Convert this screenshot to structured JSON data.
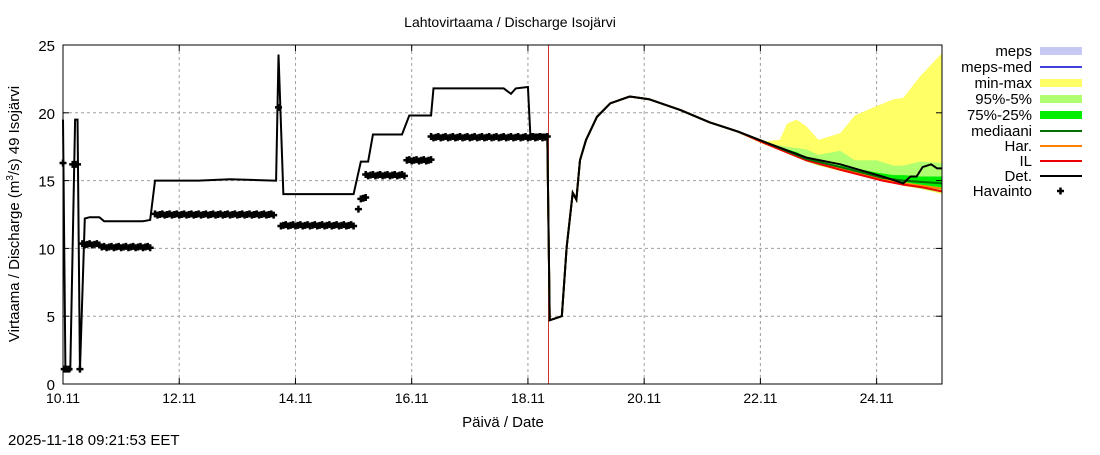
{
  "chart_data": {
    "type": "line",
    "title": "Lahtovirtaama / Discharge  Isojärvi",
    "xlabel": "Päivä / Date",
    "ylabel": "Virtaama / Discharge (m3/s)  49 Isojärvi",
    "ylabel_parts": {
      "pre": "Virtaama / Discharge (m",
      "sup": "3",
      "post": "/s)  49 Isojärvi"
    },
    "xlim": [
      "2025-11-10 00:00",
      "2025-11-25 03:00"
    ],
    "ylim": [
      0,
      25
    ],
    "grid": true,
    "legend_position": "right",
    "x_ticks": [
      {
        "label": "10.11",
        "t": "2025-11-10 00:00"
      },
      {
        "label": "12.11",
        "t": "2025-11-12 00:00"
      },
      {
        "label": "14.11",
        "t": "2025-11-14 00:00"
      },
      {
        "label": "16.11",
        "t": "2025-11-16 00:00"
      },
      {
        "label": "18.11",
        "t": "2025-11-18 00:00"
      },
      {
        "label": "20.11",
        "t": "2025-11-20 00:00"
      },
      {
        "label": "22.11",
        "t": "2025-11-22 00:00"
      },
      {
        "label": "24.11",
        "t": "2025-11-24 00:00"
      }
    ],
    "y_ticks": [
      "0",
      "5",
      "10",
      "15",
      "20",
      "25"
    ],
    "now_line": {
      "t": "2025-11-18 08:30",
      "color": "#c00000"
    },
    "legend": [
      {
        "label": "meps",
        "kind": "band",
        "color": "#c8c8f4"
      },
      {
        "label": "meps-med",
        "kind": "line",
        "color": "#4040e0"
      },
      {
        "label": "min-max",
        "kind": "band",
        "color": "#ffff66"
      },
      {
        "label": "95%-5%",
        "kind": "band",
        "color": "#b0ff70"
      },
      {
        "label": "75%-25%",
        "kind": "band",
        "color": "#00ee00"
      },
      {
        "label": "mediaani",
        "kind": "line",
        "color": "#007000"
      },
      {
        "label": "Har.",
        "kind": "line",
        "color": "#ff8000"
      },
      {
        "label": "IL",
        "kind": "line",
        "color": "#ee0000"
      },
      {
        "label": "Det.",
        "kind": "line",
        "color": "#000000"
      },
      {
        "label": "Havainto",
        "kind": "cross",
        "color": "#000000"
      }
    ],
    "bands": {
      "t": [
        "2025-11-21 15:00",
        "2025-11-22 02:30",
        "2025-11-22 08:00",
        "2025-11-22 11:00",
        "2025-11-22 15:00",
        "2025-11-22 19:00",
        "2025-11-23 00:00",
        "2025-11-23 09:00",
        "2025-11-23 15:00",
        "2025-11-24 00:00",
        "2025-11-24 07:00",
        "2025-11-24 11:00",
        "2025-11-24 18:00",
        "2025-11-25 03:00"
      ],
      "min_max": {
        "upper": [
          18.6,
          17.9,
          18.0,
          19.2,
          19.5,
          19.0,
          18.0,
          18.5,
          19.8,
          20.5,
          21.0,
          21.1,
          22.7,
          24.4
        ],
        "lower": [
          18.5,
          17.6,
          17.4,
          17.2,
          16.9,
          16.4,
          16.1,
          15.7,
          15.5,
          15.1,
          14.8,
          14.6,
          14.4,
          14.0
        ]
      },
      "p95_p5": {
        "upper": [
          18.6,
          17.8,
          17.6,
          17.5,
          17.4,
          17.3,
          16.9,
          17.2,
          16.5,
          16.5,
          16.1,
          16.1,
          16.4,
          16.3
        ],
        "lower": [
          18.5,
          17.7,
          17.4,
          17.2,
          16.9,
          16.4,
          16.1,
          15.8,
          15.5,
          15.1,
          14.8,
          14.7,
          14.4,
          14.1
        ]
      },
      "p75_p25": {
        "upper": [
          18.6,
          17.8,
          17.5,
          17.3,
          17.1,
          16.7,
          16.4,
          16.1,
          15.9,
          15.6,
          15.4,
          15.4,
          15.3,
          15.3
        ],
        "lower": [
          18.5,
          17.7,
          17.4,
          17.2,
          16.9,
          16.5,
          16.2,
          15.8,
          15.6,
          15.2,
          15.0,
          14.9,
          14.7,
          14.5
        ]
      }
    },
    "forecast": {
      "t": [
        "2025-11-18 01:00",
        "2025-11-18 08:00",
        "2025-11-18 09:00",
        "2025-11-18 14:00",
        "2025-11-18 16:00",
        "2025-11-18 18:30",
        "2025-11-18 20:00",
        "2025-11-18 21:30",
        "2025-11-19 00:00",
        "2025-11-19 04:30",
        "2025-11-19 10:00",
        "2025-11-19 18:00",
        "2025-11-20 02:00",
        "2025-11-20 15:00",
        "2025-11-21 03:00",
        "2025-11-21 15:00",
        "2025-11-22 02:30",
        "2025-11-22 19:00",
        "2025-11-23 09:00",
        "2025-11-24 02:30",
        "2025-11-24 11:00",
        "2025-11-24 19:00",
        "2025-11-25 03:00"
      ],
      "series": [
        {
          "name": "Har.",
          "color": "#ff8000",
          "values": [
            18.4,
            18.4,
            4.7,
            5.0,
            10.1,
            14.1,
            13.6,
            16.5,
            18.0,
            19.7,
            20.7,
            21.2,
            21.0,
            20.2,
            19.3,
            18.6,
            17.7,
            16.5,
            15.9,
            15.1,
            14.8,
            14.6,
            14.4
          ]
        },
        {
          "name": "IL",
          "color": "#ee0000",
          "values": [
            18.4,
            18.4,
            4.7,
            5.0,
            10.1,
            14.1,
            13.6,
            16.5,
            18.0,
            19.7,
            20.7,
            21.2,
            21.0,
            20.2,
            19.3,
            18.6,
            17.7,
            16.5,
            15.8,
            15.0,
            14.7,
            14.5,
            14.2
          ]
        },
        {
          "name": "mediaani",
          "color": "#007000",
          "values": [
            18.4,
            18.4,
            4.7,
            5.0,
            10.1,
            14.1,
            13.6,
            16.5,
            18.0,
            19.7,
            20.7,
            21.2,
            21.0,
            20.2,
            19.3,
            18.6,
            17.8,
            16.6,
            16.0,
            15.2,
            15.0,
            14.9,
            14.8
          ]
        }
      ]
    },
    "det": {
      "name": "Det.",
      "color": "#000000",
      "points": [
        [
          "2025-11-10 00:00",
          19.5
        ],
        [
          "2025-11-10 01:00",
          1.0
        ],
        [
          "2025-11-10 03:00",
          1.0
        ],
        [
          "2025-11-10 05:00",
          19.5
        ],
        [
          "2025-11-10 06:00",
          19.5
        ],
        [
          "2025-11-10 07:00",
          1.0
        ],
        [
          "2025-11-10 09:00",
          12.2
        ],
        [
          "2025-11-10 11:00",
          12.3
        ],
        [
          "2025-11-10 15:00",
          12.3
        ],
        [
          "2025-11-10 17:00",
          12.0
        ],
        [
          "2025-11-11 09:00",
          12.0
        ],
        [
          "2025-11-11 12:00",
          12.1
        ],
        [
          "2025-11-11 14:00",
          15.0
        ],
        [
          "2025-11-12 08:00",
          15.0
        ],
        [
          "2025-11-12 21:00",
          15.1
        ],
        [
          "2025-11-13 15:00",
          15.0
        ],
        [
          "2025-11-13 16:00",
          15.0
        ],
        [
          "2025-11-13 17:00",
          24.3
        ],
        [
          "2025-11-13 19:00",
          14.0
        ],
        [
          "2025-11-15 00:00",
          14.0
        ],
        [
          "2025-11-15 03:00",
          16.4
        ],
        [
          "2025-11-15 06:00",
          16.4
        ],
        [
          "2025-11-15 08:00",
          18.4
        ],
        [
          "2025-11-15 20:00",
          18.4
        ],
        [
          "2025-11-15 23:00",
          19.8
        ],
        [
          "2025-11-16 08:00",
          19.8
        ],
        [
          "2025-11-16 09:00",
          21.8
        ],
        [
          "2025-11-17 14:00",
          21.8
        ],
        [
          "2025-11-17 17:00",
          21.4
        ],
        [
          "2025-11-17 19:00",
          21.8
        ],
        [
          "2025-11-18 00:00",
          21.9
        ],
        [
          "2025-11-18 01:00",
          18.4
        ],
        [
          "2025-11-18 08:00",
          18.4
        ],
        [
          "2025-11-18 09:00",
          4.7
        ],
        [
          "2025-11-18 14:00",
          5.0
        ],
        [
          "2025-11-18 16:00",
          10.1
        ],
        [
          "2025-11-18 18:30",
          14.1
        ],
        [
          "2025-11-18 20:00",
          13.6
        ],
        [
          "2025-11-18 21:30",
          16.5
        ],
        [
          "2025-11-19 00:00",
          18.0
        ],
        [
          "2025-11-19 04:30",
          19.7
        ],
        [
          "2025-11-19 10:00",
          20.7
        ],
        [
          "2025-11-19 18:00",
          21.2
        ],
        [
          "2025-11-20 02:00",
          21.0
        ],
        [
          "2025-11-20 15:00",
          20.2
        ],
        [
          "2025-11-21 03:00",
          19.3
        ],
        [
          "2025-11-21 15:00",
          18.6
        ],
        [
          "2025-11-22 02:30",
          17.8
        ],
        [
          "2025-11-22 19:00",
          16.7
        ],
        [
          "2025-11-23 09:00",
          16.2
        ],
        [
          "2025-11-24 02:30",
          15.3
        ],
        [
          "2025-11-24 11:00",
          14.8
        ],
        [
          "2025-11-24 14:00",
          15.3
        ],
        [
          "2025-11-24 16:30",
          15.3
        ],
        [
          "2025-11-24 19:00",
          16.0
        ],
        [
          "2025-11-24 22:30",
          16.2
        ],
        [
          "2025-11-25 01:00",
          15.9
        ],
        [
          "2025-11-25 03:00",
          15.9
        ]
      ]
    },
    "observations": {
      "name": "Havainto",
      "points": [
        [
          "2025-11-10 00:00",
          16.3
        ],
        [
          "2025-11-10 00:30",
          1.1
        ],
        [
          "2025-11-10 01:30",
          1.1
        ],
        [
          "2025-11-10 02:30",
          1.1
        ],
        [
          "2025-11-10 04:00",
          16.2
        ],
        [
          "2025-11-10 05:00",
          16.2
        ],
        [
          "2025-11-10 06:00",
          16.2
        ],
        [
          "2025-11-10 07:00",
          1.1
        ],
        [
          "2025-11-13 17:00",
          20.4
        ],
        [
          "2025-11-15 02:00",
          12.9
        ]
      ],
      "runs": [
        {
          "from": "2025-11-10 08:00",
          "to": "2025-11-10 15:00",
          "value": 10.3
        },
        {
          "from": "2025-11-10 16:00",
          "to": "2025-11-11 12:00",
          "value": 10.1
        },
        {
          "from": "2025-11-11 14:00",
          "to": "2025-11-13 15:00",
          "value": 12.5
        },
        {
          "from": "2025-11-13 18:00",
          "to": "2025-11-15 00:00",
          "value": 11.7
        },
        {
          "from": "2025-11-15 03:00",
          "to": "2025-11-15 05:00",
          "value": 13.7
        },
        {
          "from": "2025-11-15 05:00",
          "to": "2025-11-15 21:00",
          "value": 15.4
        },
        {
          "from": "2025-11-15 22:00",
          "to": "2025-11-16 08:00",
          "value": 16.5
        },
        {
          "from": "2025-11-16 08:00",
          "to": "2025-11-18 08:00",
          "value": 18.2
        }
      ]
    }
  },
  "footer": {
    "timestamp": "2025-11-18 09:21:53 EET"
  }
}
